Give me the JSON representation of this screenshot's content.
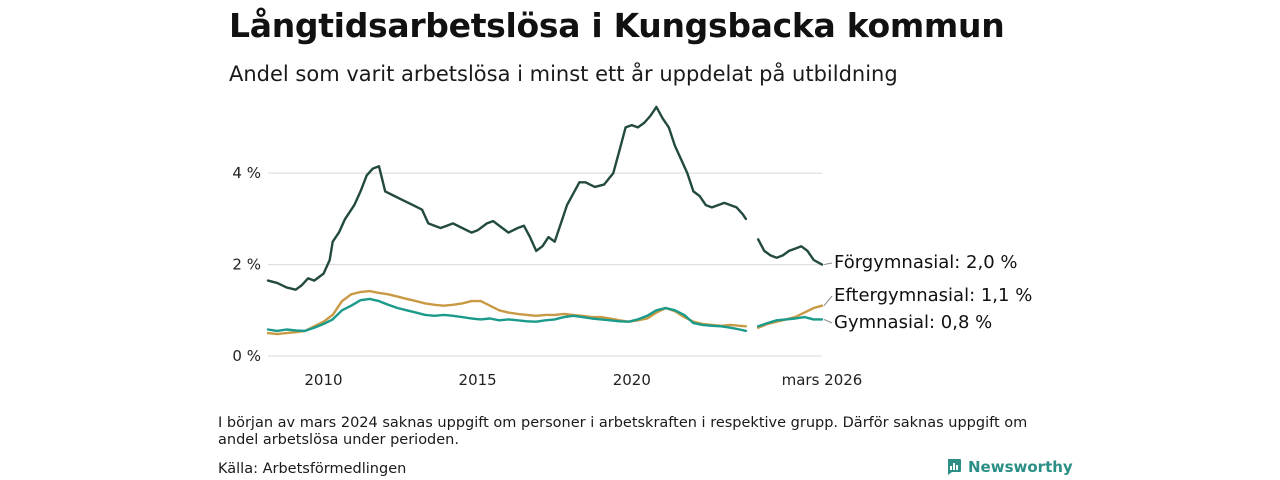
{
  "chart_data": {
    "type": "line",
    "title": "Långtidsarbetslösa i Kungsbacka kommun",
    "subtitle": "Andel som varit arbetslösa i minst ett år uppdelat på utbildning",
    "x_ticks": [
      {
        "label": "2010",
        "value": 2010
      },
      {
        "label": "2015",
        "value": 2015
      },
      {
        "label": "2020",
        "value": 2020
      },
      {
        "label": "mars 2026",
        "value": 2026.17
      }
    ],
    "y_ticks": [
      {
        "label": "0 %",
        "value": 0
      },
      {
        "label": "2 %",
        "value": 2
      },
      {
        "label": "4 %",
        "value": 4
      }
    ],
    "xlim": [
      2008.2,
      2026.17
    ],
    "ylim": [
      0,
      5.6
    ],
    "gap": [
      2023.7,
      2024.1
    ],
    "series": [
      {
        "name": "Förgymnasial",
        "end_label": "Förgymnasial: 2,0 %",
        "color": "#234a40",
        "points": [
          [
            2008.2,
            1.65
          ],
          [
            2008.5,
            1.6
          ],
          [
            2008.8,
            1.5
          ],
          [
            2009.1,
            1.45
          ],
          [
            2009.3,
            1.55
          ],
          [
            2009.5,
            1.7
          ],
          [
            2009.7,
            1.65
          ],
          [
            2009.9,
            1.75
          ],
          [
            2010.0,
            1.8
          ],
          [
            2010.2,
            2.1
          ],
          [
            2010.3,
            2.5
          ],
          [
            2010.5,
            2.7
          ],
          [
            2010.7,
            3.0
          ],
          [
            2010.8,
            3.1
          ],
          [
            2011.0,
            3.3
          ],
          [
            2011.2,
            3.6
          ],
          [
            2011.4,
            3.95
          ],
          [
            2011.6,
            4.1
          ],
          [
            2011.8,
            4.15
          ],
          [
            2012.0,
            3.6
          ],
          [
            2012.3,
            3.5
          ],
          [
            2012.6,
            3.4
          ],
          [
            2012.9,
            3.3
          ],
          [
            2013.2,
            3.2
          ],
          [
            2013.4,
            2.9
          ],
          [
            2013.6,
            2.85
          ],
          [
            2013.8,
            2.8
          ],
          [
            2014.0,
            2.85
          ],
          [
            2014.2,
            2.9
          ],
          [
            2014.5,
            2.8
          ],
          [
            2014.8,
            2.7
          ],
          [
            2015.0,
            2.75
          ],
          [
            2015.3,
            2.9
          ],
          [
            2015.5,
            2.95
          ],
          [
            2015.8,
            2.8
          ],
          [
            2016.0,
            2.7
          ],
          [
            2016.3,
            2.8
          ],
          [
            2016.5,
            2.85
          ],
          [
            2016.7,
            2.6
          ],
          [
            2016.9,
            2.3
          ],
          [
            2017.1,
            2.4
          ],
          [
            2017.3,
            2.6
          ],
          [
            2017.5,
            2.5
          ],
          [
            2017.7,
            2.9
          ],
          [
            2017.9,
            3.3
          ],
          [
            2018.1,
            3.55
          ],
          [
            2018.3,
            3.8
          ],
          [
            2018.5,
            3.8
          ],
          [
            2018.8,
            3.7
          ],
          [
            2019.1,
            3.75
          ],
          [
            2019.4,
            4.0
          ],
          [
            2019.6,
            4.5
          ],
          [
            2019.8,
            5.0
          ],
          [
            2020.0,
            5.05
          ],
          [
            2020.2,
            5.0
          ],
          [
            2020.4,
            5.1
          ],
          [
            2020.6,
            5.25
          ],
          [
            2020.8,
            5.45
          ],
          [
            2021.0,
            5.2
          ],
          [
            2021.2,
            5.0
          ],
          [
            2021.4,
            4.6
          ],
          [
            2021.6,
            4.3
          ],
          [
            2021.8,
            4.0
          ],
          [
            2022.0,
            3.6
          ],
          [
            2022.2,
            3.5
          ],
          [
            2022.4,
            3.3
          ],
          [
            2022.6,
            3.25
          ],
          [
            2022.8,
            3.3
          ],
          [
            2023.0,
            3.35
          ],
          [
            2023.2,
            3.3
          ],
          [
            2023.4,
            3.25
          ],
          [
            2023.6,
            3.1
          ],
          [
            2023.7,
            3.0
          ],
          [
            2024.1,
            2.55
          ],
          [
            2024.3,
            2.3
          ],
          [
            2024.5,
            2.2
          ],
          [
            2024.7,
            2.15
          ],
          [
            2024.9,
            2.2
          ],
          [
            2025.1,
            2.3
          ],
          [
            2025.3,
            2.35
          ],
          [
            2025.5,
            2.4
          ],
          [
            2025.7,
            2.3
          ],
          [
            2025.9,
            2.1
          ],
          [
            2026.17,
            2.0
          ]
        ]
      },
      {
        "name": "Eftergymnasial",
        "end_label": "Eftergymnasial: 1,1 %",
        "color": "#c99a45",
        "points": [
          [
            2008.2,
            0.5
          ],
          [
            2008.5,
            0.48
          ],
          [
            2008.8,
            0.5
          ],
          [
            2009.1,
            0.52
          ],
          [
            2009.4,
            0.55
          ],
          [
            2009.7,
            0.65
          ],
          [
            2010.0,
            0.75
          ],
          [
            2010.3,
            0.9
          ],
          [
            2010.6,
            1.2
          ],
          [
            2010.9,
            1.35
          ],
          [
            2011.2,
            1.4
          ],
          [
            2011.5,
            1.42
          ],
          [
            2011.8,
            1.38
          ],
          [
            2012.1,
            1.35
          ],
          [
            2012.4,
            1.3
          ],
          [
            2012.7,
            1.25
          ],
          [
            2013.0,
            1.2
          ],
          [
            2013.3,
            1.15
          ],
          [
            2013.6,
            1.12
          ],
          [
            2013.9,
            1.1
          ],
          [
            2014.2,
            1.12
          ],
          [
            2014.5,
            1.15
          ],
          [
            2014.8,
            1.2
          ],
          [
            2015.1,
            1.2
          ],
          [
            2015.4,
            1.1
          ],
          [
            2015.7,
            1.0
          ],
          [
            2016.0,
            0.95
          ],
          [
            2016.3,
            0.92
          ],
          [
            2016.6,
            0.9
          ],
          [
            2016.9,
            0.88
          ],
          [
            2017.2,
            0.9
          ],
          [
            2017.5,
            0.9
          ],
          [
            2017.8,
            0.92
          ],
          [
            2018.1,
            0.9
          ],
          [
            2018.4,
            0.88
          ],
          [
            2018.7,
            0.85
          ],
          [
            2019.0,
            0.85
          ],
          [
            2019.3,
            0.82
          ],
          [
            2019.6,
            0.78
          ],
          [
            2019.9,
            0.75
          ],
          [
            2020.2,
            0.78
          ],
          [
            2020.5,
            0.82
          ],
          [
            2020.8,
            0.95
          ],
          [
            2021.1,
            1.05
          ],
          [
            2021.4,
            0.98
          ],
          [
            2021.7,
            0.85
          ],
          [
            2022.0,
            0.75
          ],
          [
            2022.3,
            0.7
          ],
          [
            2022.6,
            0.68
          ],
          [
            2022.9,
            0.66
          ],
          [
            2023.2,
            0.68
          ],
          [
            2023.5,
            0.66
          ],
          [
            2023.7,
            0.65
          ],
          [
            2024.1,
            0.62
          ],
          [
            2024.4,
            0.7
          ],
          [
            2024.7,
            0.75
          ],
          [
            2025.0,
            0.8
          ],
          [
            2025.3,
            0.85
          ],
          [
            2025.6,
            0.95
          ],
          [
            2025.9,
            1.05
          ],
          [
            2026.17,
            1.1
          ]
        ]
      },
      {
        "name": "Gymnasial",
        "end_label": "Gymnasial: 0,8 %",
        "color": "#1a9a8a",
        "points": [
          [
            2008.2,
            0.58
          ],
          [
            2008.5,
            0.55
          ],
          [
            2008.8,
            0.58
          ],
          [
            2009.1,
            0.56
          ],
          [
            2009.4,
            0.55
          ],
          [
            2009.7,
            0.62
          ],
          [
            2010.0,
            0.7
          ],
          [
            2010.3,
            0.8
          ],
          [
            2010.6,
            1.0
          ],
          [
            2010.9,
            1.1
          ],
          [
            2011.2,
            1.22
          ],
          [
            2011.5,
            1.25
          ],
          [
            2011.8,
            1.2
          ],
          [
            2012.1,
            1.12
          ],
          [
            2012.4,
            1.05
          ],
          [
            2012.7,
            1.0
          ],
          [
            2013.0,
            0.95
          ],
          [
            2013.3,
            0.9
          ],
          [
            2013.6,
            0.88
          ],
          [
            2013.9,
            0.9
          ],
          [
            2014.2,
            0.88
          ],
          [
            2014.5,
            0.85
          ],
          [
            2014.8,
            0.82
          ],
          [
            2015.1,
            0.8
          ],
          [
            2015.4,
            0.82
          ],
          [
            2015.7,
            0.78
          ],
          [
            2016.0,
            0.8
          ],
          [
            2016.3,
            0.78
          ],
          [
            2016.6,
            0.76
          ],
          [
            2016.9,
            0.75
          ],
          [
            2017.2,
            0.78
          ],
          [
            2017.5,
            0.8
          ],
          [
            2017.8,
            0.85
          ],
          [
            2018.1,
            0.88
          ],
          [
            2018.4,
            0.85
          ],
          [
            2018.7,
            0.82
          ],
          [
            2019.0,
            0.8
          ],
          [
            2019.3,
            0.78
          ],
          [
            2019.6,
            0.76
          ],
          [
            2019.9,
            0.75
          ],
          [
            2020.2,
            0.8
          ],
          [
            2020.5,
            0.88
          ],
          [
            2020.8,
            1.0
          ],
          [
            2021.1,
            1.05
          ],
          [
            2021.4,
            1.0
          ],
          [
            2021.7,
            0.9
          ],
          [
            2022.0,
            0.72
          ],
          [
            2022.3,
            0.68
          ],
          [
            2022.6,
            0.66
          ],
          [
            2022.9,
            0.65
          ],
          [
            2023.2,
            0.62
          ],
          [
            2023.5,
            0.58
          ],
          [
            2023.7,
            0.55
          ],
          [
            2024.1,
            0.65
          ],
          [
            2024.4,
            0.72
          ],
          [
            2024.7,
            0.78
          ],
          [
            2025.0,
            0.8
          ],
          [
            2025.3,
            0.82
          ],
          [
            2025.6,
            0.85
          ],
          [
            2025.9,
            0.8
          ],
          [
            2026.17,
            0.8
          ]
        ]
      }
    ]
  },
  "footnote": "I början av mars 2024 saknas uppgift om personer i arbetskraften i respektive grupp. Därför saknas uppgift om andel arbetslösa under perioden.",
  "source": "Källa: Arbetsförmedlingen",
  "brand": {
    "name": "Newsworthy",
    "icon": "newsworthy-logo-icon",
    "color": "#2b8f86"
  }
}
